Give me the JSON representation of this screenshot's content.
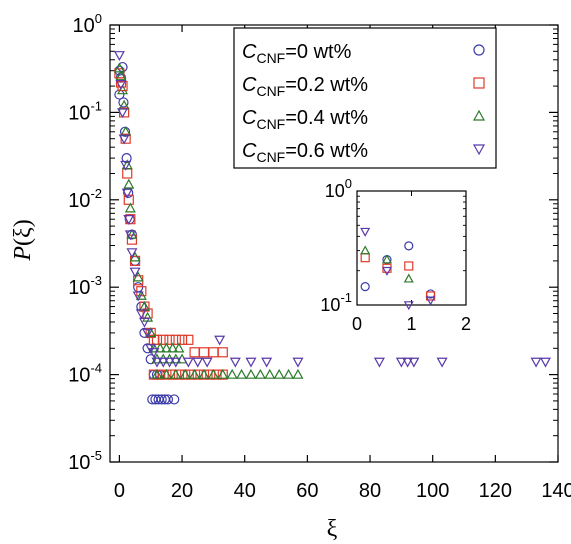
{
  "chart_data": {
    "type": "scatter",
    "xlabel": "ξ",
    "ylabel": "P(ξ)",
    "xlim": [
      -3,
      140
    ],
    "ylim": [
      1e-05,
      1
    ],
    "yscale": "log",
    "x_ticks": [
      "0",
      "20",
      "40",
      "60",
      "80",
      "100",
      "120",
      "140"
    ],
    "x_tick_values": [
      0,
      20,
      40,
      60,
      80,
      100,
      120,
      140
    ],
    "y_ticks": [
      {
        "base": "10",
        "exp": "0",
        "value": 1
      },
      {
        "base": "10",
        "exp": "-1",
        "value": 0.1
      },
      {
        "base": "10",
        "exp": "-2",
        "value": 0.01
      },
      {
        "base": "10",
        "exp": "-3",
        "value": 0.001
      },
      {
        "base": "10",
        "exp": "-4",
        "value": 0.0001
      },
      {
        "base": "10",
        "exp": "-5",
        "value": 1e-05
      }
    ],
    "legend": {
      "position": "top-right"
    },
    "series": [
      {
        "label_c": "C",
        "label_sub": "CNF",
        "label_rest": "=0    wt%",
        "marker": "circle",
        "color": "#3a3aaa",
        "points": [
          [
            0,
            0.3
          ],
          [
            0,
            0.16
          ],
          [
            0.5,
            0.25
          ],
          [
            1,
            0.33
          ],
          [
            1.3,
            0.13
          ],
          [
            1.8,
            0.06
          ],
          [
            2.3,
            0.03
          ],
          [
            2.8,
            0.012
          ],
          [
            3.3,
            0.006
          ],
          [
            4,
            0.004
          ],
          [
            5,
            0.002
          ],
          [
            6,
            0.001
          ],
          [
            7,
            0.0006
          ],
          [
            8,
            0.0003
          ],
          [
            9,
            0.0002
          ],
          [
            10,
            0.00015
          ],
          [
            11,
            0.0001
          ],
          [
            12,
            0.0001
          ],
          [
            13,
            0.0001
          ],
          [
            10.5,
            5.2e-05
          ],
          [
            11.5,
            5.2e-05
          ],
          [
            12.5,
            5.2e-05
          ],
          [
            13.5,
            5.2e-05
          ],
          [
            14.5,
            5.2e-05
          ],
          [
            15.5,
            5.2e-05
          ],
          [
            17.5,
            5.2e-05
          ]
        ]
      },
      {
        "label_c": "C",
        "label_sub": "CNF",
        "label_rest": "=0.2 wt%",
        "marker": "square",
        "color": "#e03a2a",
        "points": [
          [
            0,
            0.28
          ],
          [
            0.5,
            0.22
          ],
          [
            1,
            0.2
          ],
          [
            1.5,
            0.1
          ],
          [
            2,
            0.05
          ],
          [
            2.5,
            0.02
          ],
          [
            3,
            0.01
          ],
          [
            3.5,
            0.006
          ],
          [
            4,
            0.0035
          ],
          [
            5,
            0.002
          ],
          [
            6,
            0.0012
          ],
          [
            7,
            0.0009
          ],
          [
            8,
            0.0006
          ],
          [
            9,
            0.0005
          ],
          [
            10,
            0.0003
          ],
          [
            11,
            0.00025
          ],
          [
            12,
            0.00025
          ],
          [
            14,
            0.00025
          ],
          [
            16,
            0.00025
          ],
          [
            18,
            0.00025
          ],
          [
            20,
            0.00025
          ],
          [
            22,
            0.00025
          ],
          [
            24,
            0.00018
          ],
          [
            27,
            0.00018
          ],
          [
            30,
            0.00018
          ],
          [
            33,
            0.00018
          ],
          [
            11,
            0.0001
          ],
          [
            13,
            0.0001
          ],
          [
            15,
            0.0001
          ],
          [
            17,
            0.0001
          ],
          [
            19,
            0.0001
          ],
          [
            21,
            0.0001
          ],
          [
            23,
            0.0001
          ],
          [
            25,
            0.0001
          ],
          [
            27,
            0.0001
          ],
          [
            29,
            0.0001
          ],
          [
            31,
            0.0001
          ],
          [
            33,
            0.0001
          ]
        ]
      },
      {
        "label_c": "C",
        "label_sub": "CNF",
        "label_rest": "=0.4 wt%",
        "marker": "triangle",
        "color": "#2a7a2a",
        "points": [
          [
            0,
            0.32
          ],
          [
            0.5,
            0.26
          ],
          [
            1,
            0.18
          ],
          [
            1.5,
            0.12
          ],
          [
            2,
            0.06
          ],
          [
            2.5,
            0.025
          ],
          [
            3,
            0.015
          ],
          [
            3.5,
            0.008
          ],
          [
            4,
            0.004
          ],
          [
            5,
            0.0022
          ],
          [
            6,
            0.0013
          ],
          [
            7,
            0.0008
          ],
          [
            8,
            0.0006
          ],
          [
            9,
            0.00045
          ],
          [
            10,
            0.0003
          ],
          [
            11,
            0.0002
          ],
          [
            13,
            0.0002
          ],
          [
            15,
            0.0002
          ],
          [
            17,
            0.0002
          ],
          [
            19,
            0.0002
          ],
          [
            12,
            0.00015
          ],
          [
            14,
            0.00015
          ],
          [
            16,
            0.00015
          ],
          [
            18,
            0.00015
          ],
          [
            20,
            0.00015
          ],
          [
            12,
            0.0001
          ],
          [
            15,
            0.0001
          ],
          [
            18,
            0.0001
          ],
          [
            21,
            0.0001
          ],
          [
            24,
            0.0001
          ],
          [
            27,
            0.0001
          ],
          [
            30,
            0.0001
          ],
          [
            33,
            0.0001
          ],
          [
            36,
            0.0001
          ],
          [
            39,
            0.0001
          ],
          [
            42,
            0.0001
          ],
          [
            45,
            0.0001
          ],
          [
            48,
            0.0001
          ],
          [
            51,
            0.0001
          ],
          [
            54,
            0.0001
          ],
          [
            57,
            0.0001
          ]
        ]
      },
      {
        "label_c": "C",
        "label_sub": "CNF",
        "label_rest": "=0.6 wt%",
        "marker": "triangle-down",
        "color": "#5a3aaa",
        "points": [
          [
            0,
            0.45
          ],
          [
            0.5,
            0.21
          ],
          [
            1,
            0.1
          ],
          [
            1.5,
            0.05
          ],
          [
            2,
            0.025
          ],
          [
            2.5,
            0.012
          ],
          [
            3,
            0.006
          ],
          [
            3.5,
            0.004
          ],
          [
            4,
            0.0025
          ],
          [
            5,
            0.0015
          ],
          [
            6,
            0.0008
          ],
          [
            7,
            0.0005
          ],
          [
            8,
            0.0004
          ],
          [
            9,
            0.0003
          ],
          [
            10,
            0.0002
          ],
          [
            11,
            0.00018
          ],
          [
            12,
            0.00014
          ],
          [
            14,
            0.00014
          ],
          [
            16,
            0.00014
          ],
          [
            18,
            0.00014
          ],
          [
            22,
            0.00014
          ],
          [
            25,
            0.00014
          ],
          [
            28,
            0.00014
          ],
          [
            32,
            0.00025
          ],
          [
            37,
            0.00014
          ],
          [
            42,
            0.00014
          ],
          [
            47,
            0.00014
          ],
          [
            57,
            0.00014
          ],
          [
            83,
            0.00014
          ],
          [
            90,
            0.00014
          ],
          [
            92,
            0.00014
          ],
          [
            94,
            0.00014
          ],
          [
            103,
            0.00014
          ],
          [
            133,
            0.00014
          ],
          [
            136,
            0.00014
          ]
        ]
      }
    ],
    "inset": {
      "xlim": [
        0,
        2
      ],
      "ylim": [
        0.1,
        1
      ],
      "yscale": "log",
      "x_ticks": [
        "0",
        "1",
        "2"
      ],
      "x_tick_values": [
        0,
        1,
        2
      ],
      "y_ticks": [
        {
          "base": "10",
          "exp": "0",
          "value": 1
        },
        {
          "base": "10",
          "exp": "-1",
          "value": 0.1
        }
      ],
      "series": [
        {
          "marker": "circle",
          "color": "#3a3aaa",
          "points": [
            [
              0.15,
              0.145
            ],
            [
              0.55,
              0.25
            ],
            [
              0.95,
              0.33
            ],
            [
              1.35,
              0.125
            ]
          ]
        },
        {
          "marker": "square",
          "color": "#e03a2a",
          "points": [
            [
              0.15,
              0.26
            ],
            [
              0.55,
              0.21
            ],
            [
              0.95,
              0.22
            ],
            [
              1.35,
              0.12
            ]
          ]
        },
        {
          "marker": "triangle",
          "color": "#2a7a2a",
          "points": [
            [
              0.15,
              0.3
            ],
            [
              0.55,
              0.25
            ],
            [
              0.95,
              0.17
            ]
          ]
        },
        {
          "marker": "triangle-down",
          "color": "#5a3aaa",
          "points": [
            [
              0.15,
              0.44
            ],
            [
              0.55,
              0.2
            ],
            [
              0.95,
              0.1
            ],
            [
              1.35,
              0.11
            ]
          ]
        }
      ]
    }
  }
}
